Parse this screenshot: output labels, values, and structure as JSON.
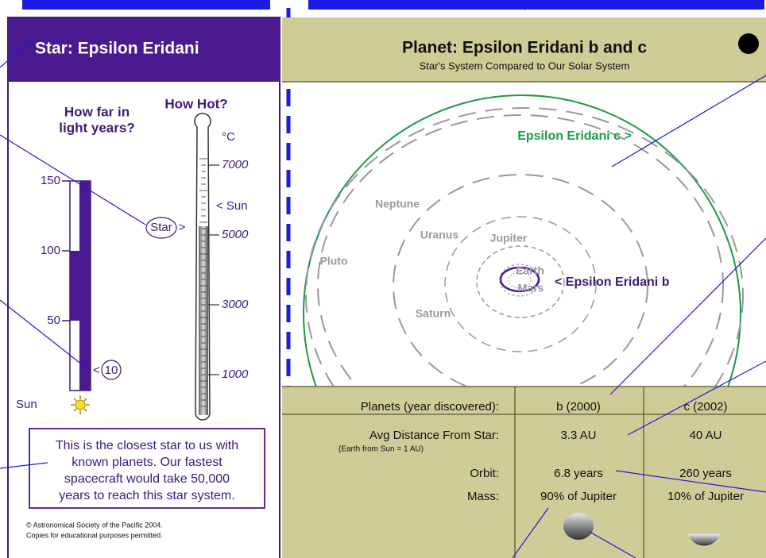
{
  "star_panel": {
    "title": "Star: Epsilon Eridani",
    "distance": {
      "heading": [
        "How far in",
        "light years?"
      ],
      "ticks": [
        150,
        100,
        50
      ],
      "marker_prefix": "<",
      "marker": "10",
      "origin": "Sun"
    },
    "temperature": {
      "heading": "How Hot?",
      "unit": "°C",
      "ticks": [
        7000,
        5000,
        3000,
        1000
      ],
      "sun_marker": "< Sun",
      "star_marker": "Star",
      "star_arrow": ">"
    },
    "note": [
      "This is the closest star to us with",
      "known planets. Our fastest",
      "spacecraft would take 50,000",
      "years to reach this star system."
    ],
    "copyright": [
      "© Astronomical Society of the Pacific 2004.",
      "Copies for educational purposes permitted."
    ]
  },
  "planet_panel": {
    "title": "Planet: Epsilon Eridani b and c",
    "subtitle": "Star's System Compared to Our Solar System",
    "orbit_labels": {
      "planet_c": "Epsilon Eridani c >",
      "neptune": "Neptune",
      "uranus": "Uranus",
      "jupiter": "Jupiter",
      "pluto": "Pluto",
      "earth": "Earth",
      "mars": "Mars",
      "planet_b": "< Epsilon Eridani b",
      "saturn": "Saturn"
    },
    "table": {
      "header": [
        "Planets (year discovered):",
        "b (2000)",
        "c (2002)"
      ],
      "rows": [
        [
          "Avg Distance From Star:",
          "3.3 AU",
          "40 AU"
        ],
        [
          "Orbit:",
          "6.8 years",
          "260 years"
        ],
        [
          "Mass:",
          "90% of Jupiter",
          "10% of Jupiter"
        ]
      ],
      "note": "(Earth from Sun = 1 AU)"
    }
  }
}
